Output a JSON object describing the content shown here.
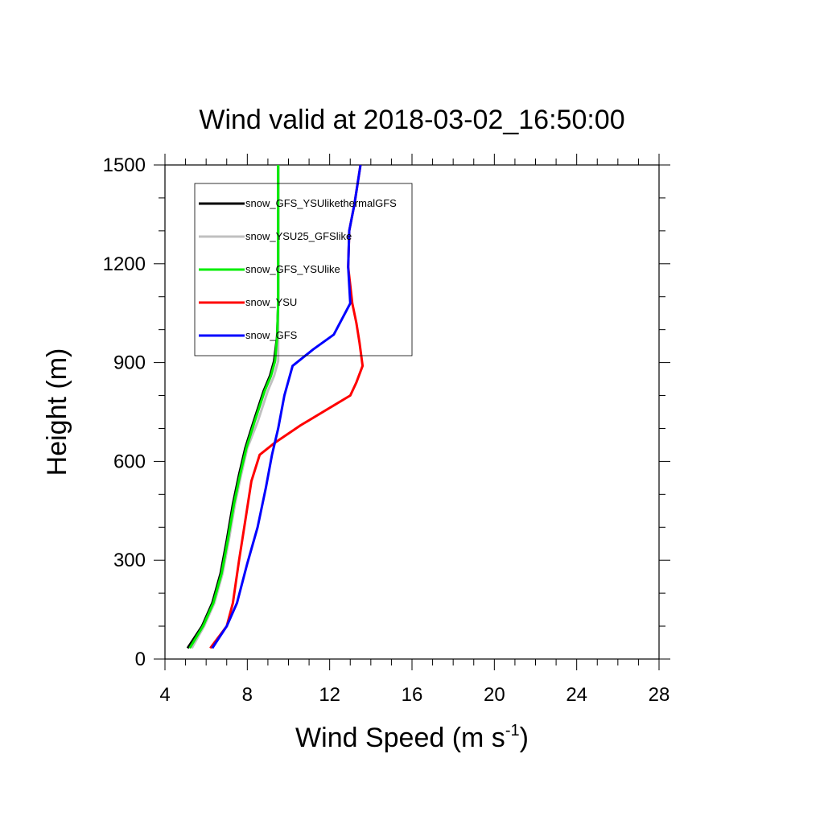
{
  "chart_data": {
    "type": "line",
    "title": "Wind valid at 2018-03-02_16:50:00",
    "xlabel_main": "Wind Speed (m s",
    "xlabel_sup": "-1",
    "xlabel_end": ")",
    "ylabel": "Height (m)",
    "xlim": [
      4,
      28
    ],
    "ylim": [
      0,
      1500
    ],
    "xticks": [
      4,
      8,
      12,
      16,
      20,
      24,
      28
    ],
    "yticks": [
      0,
      300,
      600,
      900,
      1200,
      1500
    ],
    "grid": false,
    "legend_position": "top-left",
    "series": [
      {
        "name": "snow_GFS_YSUlikethermalGFS",
        "color": "#000000",
        "points": [
          [
            5.1,
            33
          ],
          [
            5.8,
            100
          ],
          [
            6.3,
            170
          ],
          [
            6.7,
            260
          ],
          [
            7.0,
            360
          ],
          [
            7.3,
            470
          ],
          [
            7.6,
            560
          ],
          [
            7.9,
            640
          ],
          [
            8.3,
            720
          ],
          [
            8.8,
            815
          ],
          [
            9.1,
            860
          ],
          [
            9.3,
            905
          ],
          [
            9.45,
            980
          ],
          [
            9.5,
            1080
          ],
          [
            9.5,
            1200
          ],
          [
            9.5,
            1320
          ],
          [
            9.5,
            1500
          ]
        ]
      },
      {
        "name": "snow_YSU25_GFSlike",
        "color": "#c0c0c0",
        "points": [
          [
            5.3,
            33
          ],
          [
            5.9,
            100
          ],
          [
            6.4,
            170
          ],
          [
            6.8,
            260
          ],
          [
            7.1,
            360
          ],
          [
            7.4,
            470
          ],
          [
            7.7,
            560
          ],
          [
            8.0,
            640
          ],
          [
            8.5,
            720
          ],
          [
            9.0,
            815
          ],
          [
            9.3,
            860
          ],
          [
            9.5,
            905
          ],
          [
            9.5,
            980
          ],
          [
            9.5,
            1080
          ],
          [
            9.5,
            1200
          ],
          [
            9.5,
            1320
          ],
          [
            9.5,
            1500
          ]
        ]
      },
      {
        "name": "snow_GFS_YSUlike",
        "color": "#00ee00",
        "points": [
          [
            5.2,
            33
          ],
          [
            5.85,
            100
          ],
          [
            6.35,
            170
          ],
          [
            6.75,
            260
          ],
          [
            7.05,
            360
          ],
          [
            7.35,
            470
          ],
          [
            7.65,
            560
          ],
          [
            7.95,
            640
          ],
          [
            8.35,
            720
          ],
          [
            8.85,
            815
          ],
          [
            9.15,
            860
          ],
          [
            9.35,
            905
          ],
          [
            9.45,
            980
          ],
          [
            9.5,
            1080
          ],
          [
            9.5,
            1200
          ],
          [
            9.5,
            1320
          ],
          [
            9.5,
            1500
          ]
        ]
      },
      {
        "name": "snow_YSU",
        "color": "#ff0000",
        "points": [
          [
            6.2,
            33
          ],
          [
            7.0,
            100
          ],
          [
            7.3,
            170
          ],
          [
            7.6,
            300
          ],
          [
            7.9,
            420
          ],
          [
            8.2,
            540
          ],
          [
            8.6,
            620
          ],
          [
            9.3,
            655
          ],
          [
            10.6,
            710
          ],
          [
            12.2,
            770
          ],
          [
            13.0,
            800
          ],
          [
            13.3,
            840
          ],
          [
            13.6,
            890
          ],
          [
            13.45,
            960
          ],
          [
            13.3,
            1020
          ],
          [
            13.1,
            1080
          ],
          [
            12.9,
            1190
          ],
          [
            12.95,
            1300
          ],
          [
            13.2,
            1380
          ],
          [
            13.5,
            1500
          ]
        ]
      },
      {
        "name": "snow_GFS",
        "color": "#0000ff",
        "points": [
          [
            6.3,
            33
          ],
          [
            7.0,
            100
          ],
          [
            7.5,
            170
          ],
          [
            8.0,
            290
          ],
          [
            8.5,
            400
          ],
          [
            8.9,
            520
          ],
          [
            9.2,
            620
          ],
          [
            9.5,
            700
          ],
          [
            9.8,
            800
          ],
          [
            10.2,
            890
          ],
          [
            11.2,
            940
          ],
          [
            12.2,
            985
          ],
          [
            13.0,
            1080
          ],
          [
            12.9,
            1190
          ],
          [
            12.95,
            1300
          ],
          [
            13.2,
            1380
          ],
          [
            13.5,
            1500
          ]
        ]
      }
    ]
  }
}
